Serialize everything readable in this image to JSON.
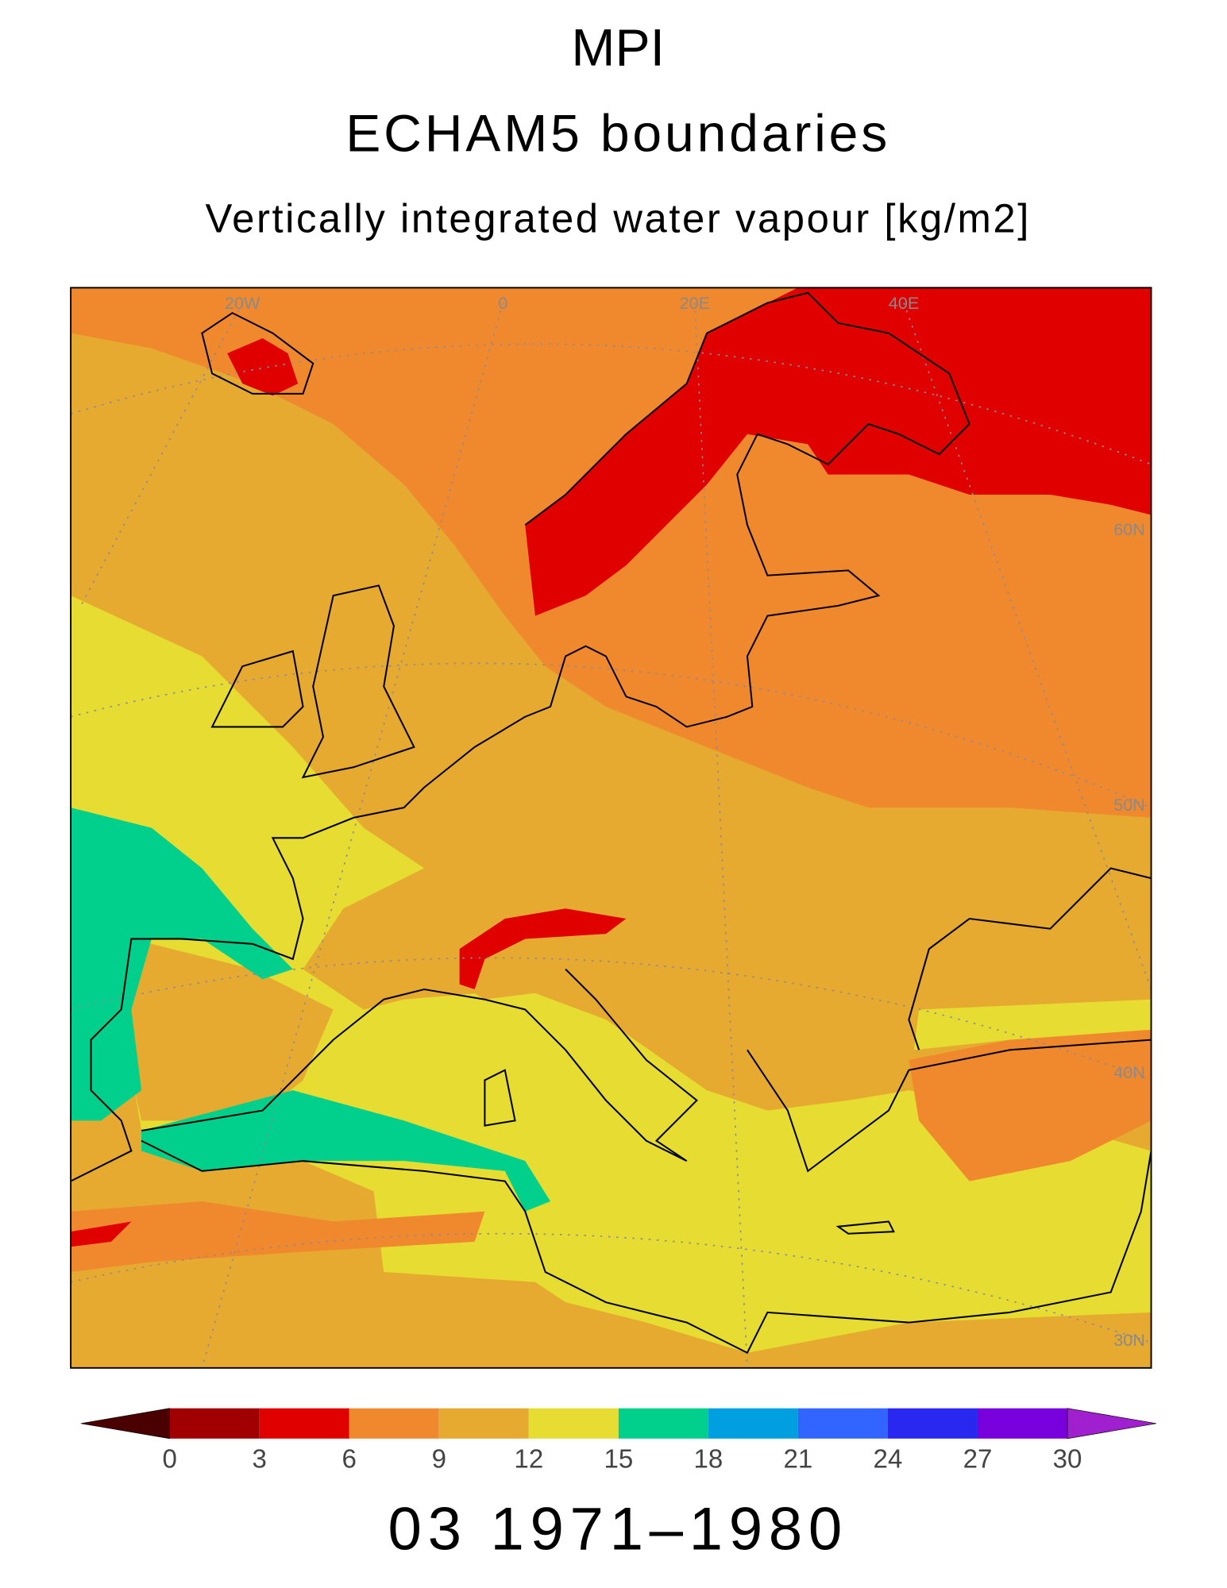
{
  "title": "MPI",
  "subtitle": "ECHAM5 boundaries",
  "variable": "Vertically integrated water vapour [kg/m2]",
  "map": {
    "lon_labels": [
      "20W",
      "0",
      "20E",
      "40E"
    ],
    "lat_labels": [
      "60N",
      "50N",
      "40N",
      "30N"
    ]
  },
  "colorbar": {
    "levels": [
      0,
      3,
      6,
      9,
      12,
      15,
      18,
      21,
      24,
      27,
      30
    ],
    "colors": [
      "#4a0000",
      "#a00000",
      "#e00000",
      "#f0882e",
      "#e6aa30",
      "#e6dc32",
      "#00d08c",
      "#00a0e0",
      "#3264ff",
      "#2828f0",
      "#7800dc",
      "#a020d0"
    ]
  },
  "period": "03 1971–1980"
}
